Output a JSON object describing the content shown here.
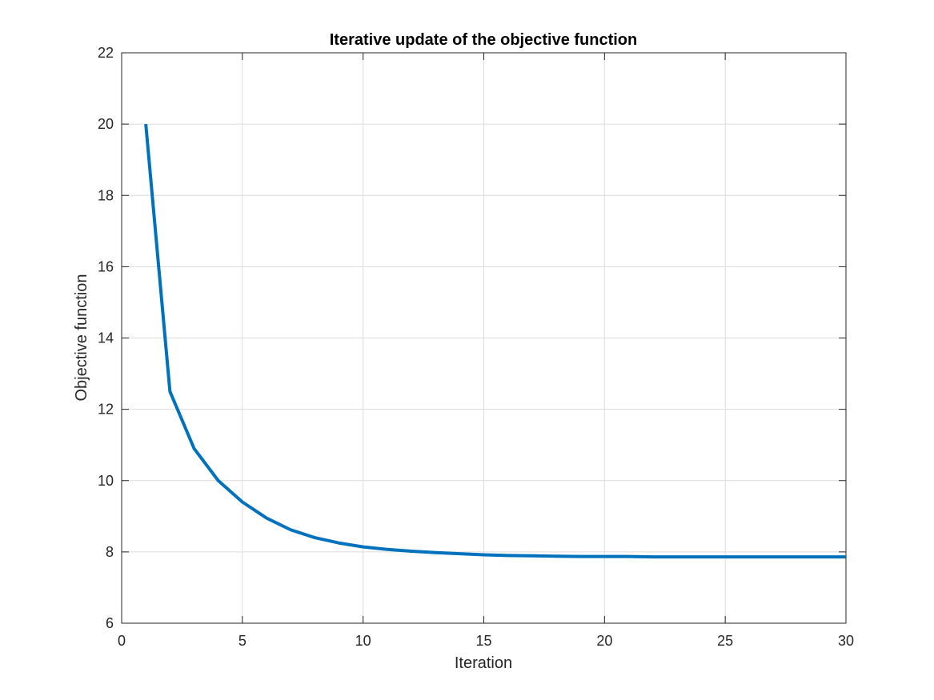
{
  "chart_data": {
    "type": "line",
    "title": "Iterative update of the objective function",
    "xlabel": "Iteration",
    "ylabel": "Objective function",
    "xlim": [
      0,
      30
    ],
    "ylim": [
      6,
      22
    ],
    "xticks": [
      0,
      5,
      10,
      15,
      20,
      25,
      30
    ],
    "yticks": [
      6,
      8,
      10,
      12,
      14,
      16,
      18,
      20,
      22
    ],
    "grid": true,
    "legend": "none",
    "series": [
      {
        "color": "#0072BD",
        "x": [
          1,
          2,
          3,
          4,
          5,
          6,
          7,
          8,
          9,
          10,
          11,
          12,
          13,
          14,
          15,
          16,
          17,
          18,
          19,
          20,
          21,
          22,
          23,
          24,
          25,
          26,
          27,
          28,
          29,
          30
        ],
        "y": [
          20.0,
          12.5,
          10.9,
          10.0,
          9.4,
          8.95,
          8.62,
          8.4,
          8.25,
          8.14,
          8.07,
          8.02,
          7.98,
          7.95,
          7.92,
          7.9,
          7.89,
          7.88,
          7.87,
          7.87,
          7.87,
          7.86,
          7.86,
          7.86,
          7.86,
          7.86,
          7.86,
          7.86,
          7.86,
          7.86
        ]
      }
    ]
  }
}
